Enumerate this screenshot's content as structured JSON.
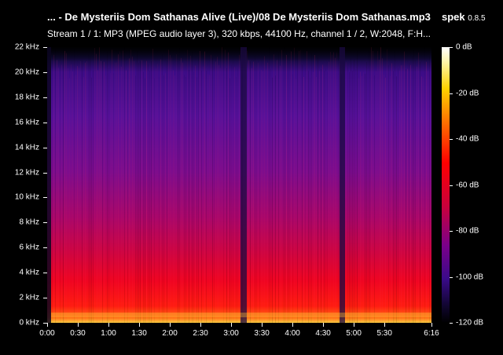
{
  "header": {
    "title": "... - De Mysteriis Dom Sathanas Alive (Live)/08 De Mysteriis Dom Sathanas.mp3",
    "app_name": "spek",
    "app_version": "0.8.5",
    "stream_info": "Stream 1 / 1: MP3 (MPEG audio layer 3), 320 kbps, 44100 Hz, channel 1 / 2, W:2048, F:H..."
  },
  "frequency_axis": {
    "labels": [
      "22 kHz",
      "20 kHz",
      "18 kHz",
      "16 kHz",
      "14 kHz",
      "12 kHz",
      "10 kHz",
      "8 kHz",
      "6 kHz",
      "4 kHz",
      "2 kHz",
      "0 kHz"
    ],
    "max_khz": 22
  },
  "time_axis": {
    "labels": [
      "0:00",
      "0:30",
      "1:00",
      "1:30",
      "2:00",
      "2:30",
      "3:00",
      "3:30",
      "4:00",
      "4:30",
      "5:00",
      "5:30",
      "6:16"
    ],
    "duration_seconds": 376
  },
  "db_scale": {
    "labels": [
      "0 dB",
      "-20 dB",
      "-40 dB",
      "-60 dB",
      "-80 dB",
      "-100 dB",
      "-120 dB"
    ]
  },
  "colors": {
    "background": "#000000",
    "low": "#000000",
    "mid": "#c8003c",
    "high": "#ffffff"
  }
}
